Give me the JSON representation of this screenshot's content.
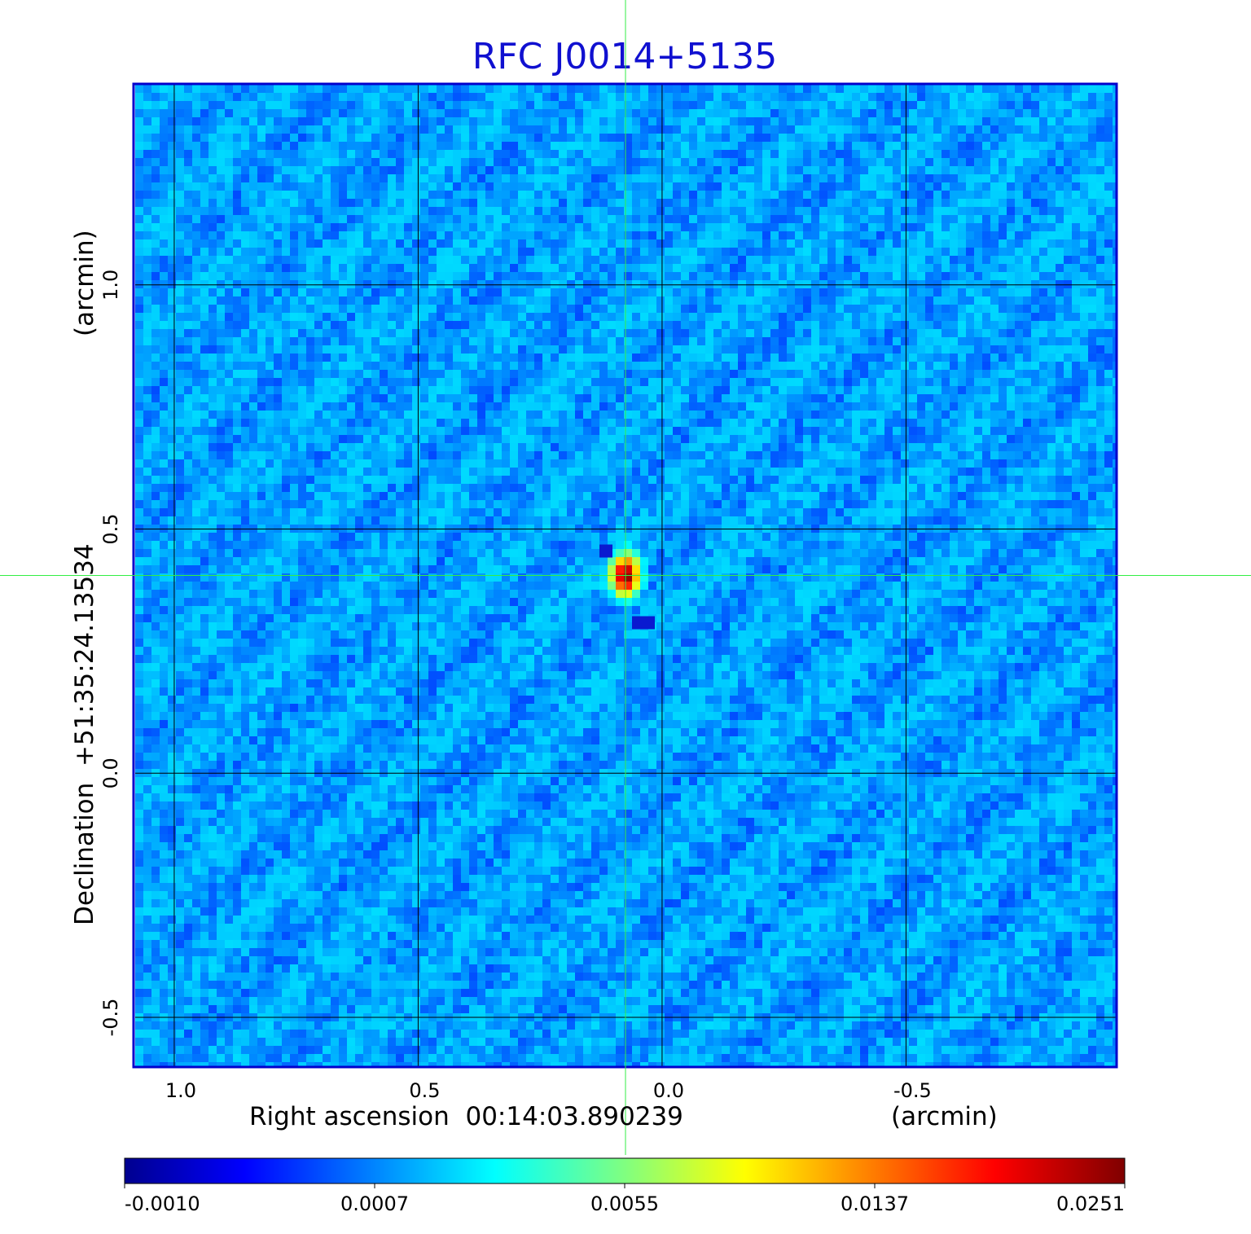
{
  "chart_data": {
    "type": "heatmap",
    "title": "RFC J0014+5135",
    "xlabel": "Right ascension  00:14:03.890239",
    "xunit": "(arcmin)",
    "ylabel": "Declination  +51:35:24.13534",
    "yunit": "(arcmin)",
    "x_ticks": [
      "1.0",
      "0.5",
      "0.0",
      "-0.5"
    ],
    "y_ticks": [
      "1.0",
      "0.5",
      "0.0",
      "-0.5"
    ],
    "x_tick_values": [
      1.0,
      0.5,
      0.0,
      -0.5
    ],
    "y_tick_values": [
      1.0,
      0.5,
      0.0,
      -0.5
    ],
    "xlim": [
      1.08,
      -0.93
    ],
    "ylim": [
      -0.6,
      1.41
    ],
    "grid": true,
    "crosshair": {
      "x": 0.075,
      "y": 0.405
    },
    "colorbar": {
      "ticks": [
        "-0.0010",
        "0.0007",
        "0.0055",
        "0.0137",
        "0.0251"
      ],
      "min": -0.001,
      "max": 0.0251,
      "colormap": "jet"
    },
    "background_level": 0.0004,
    "source": {
      "ra_offset_arcmin": 0.075,
      "dec_offset_arcmin": 0.405,
      "peak": 0.0251
    }
  }
}
